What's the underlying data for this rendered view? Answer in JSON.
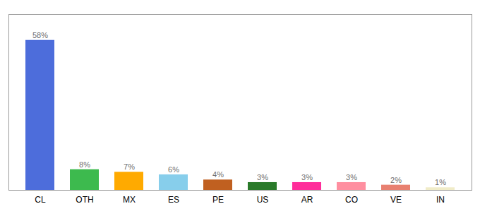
{
  "chart_data": {
    "type": "bar",
    "categories": [
      "CL",
      "OTH",
      "MX",
      "ES",
      "PE",
      "US",
      "AR",
      "CO",
      "VE",
      "IN"
    ],
    "values": [
      58,
      8,
      7,
      6,
      4,
      3,
      3,
      3,
      2,
      1
    ],
    "value_labels": [
      "58%",
      "8%",
      "7%",
      "6%",
      "4%",
      "3%",
      "3%",
      "3%",
      "2%",
      "1%"
    ],
    "colors": [
      "#4d6ddb",
      "#3dba4e",
      "#ffaa00",
      "#87ceeb",
      "#c06020",
      "#2a7a2a",
      "#ff2d9a",
      "#ff8fa0",
      "#e88070",
      "#f0ecc8"
    ],
    "ylim": [
      0,
      68
    ],
    "data_labels": true,
    "tick_labels": "x",
    "grid": false
  }
}
